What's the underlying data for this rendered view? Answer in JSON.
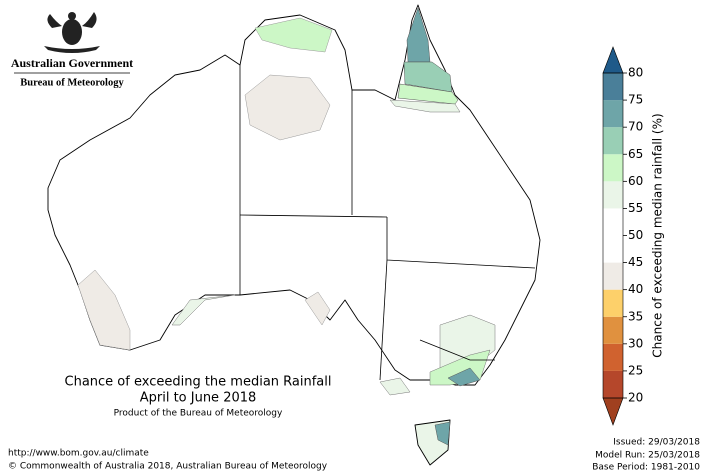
{
  "header": {
    "government": "Australian Government",
    "agency": "Bureau of Meteorology"
  },
  "title": {
    "main": "Chance of exceeding the median Rainfall",
    "period": "April to June 2018",
    "product": "Product of the Bureau of Meteorology"
  },
  "footer": {
    "url": "http://www.bom.gov.au/climate",
    "copyright": "© Commonwealth of Australia 2018, Australian Bureau of Meteorology"
  },
  "run_info": {
    "issued": "Issued: 29/03/2018",
    "model_run": "Model Run: 25/03/2018",
    "base_period": "Base Period: 1981-2010"
  },
  "colorbar": {
    "label": "Chance of exceeding median rainfall (%)",
    "ticks": [
      20,
      25,
      30,
      35,
      40,
      45,
      50,
      55,
      60,
      65,
      70,
      75,
      80
    ],
    "colors": [
      "#b5472b",
      "#d0622f",
      "#e0913f",
      "#fdd06a",
      "#efebe6",
      "#ffffff",
      "#ffffff",
      "#eaf5e8",
      "#ccf7c6",
      "#99cfb5",
      "#6ea5a8",
      "#4a7f99"
    ],
    "under_color": "#a0401f",
    "over_color": "#1f5a89"
  }
}
